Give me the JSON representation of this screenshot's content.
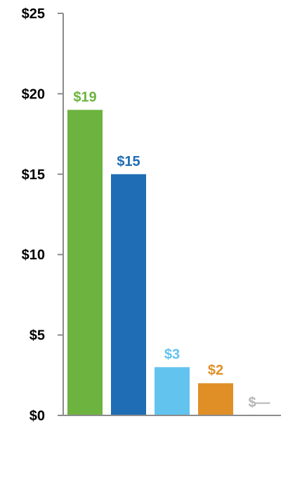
{
  "chart_data": {
    "type": "bar",
    "title": "",
    "xlabel": "",
    "ylabel": "",
    "ylim": [
      0,
      25
    ],
    "y_ticks": [
      0,
      5,
      10,
      15,
      20,
      25
    ],
    "y_tick_labels": [
      "$0",
      "$5",
      "$10",
      "$15",
      "$20",
      "$25"
    ],
    "values": [
      19,
      15,
      3,
      2,
      0
    ],
    "data_labels": [
      "$19",
      "$15",
      "$3",
      "$2",
      "$—"
    ],
    "colors": [
      "#6db33f",
      "#1f6db4",
      "#62c3ef",
      "#e08f27",
      "#b5b5b5"
    ],
    "grid": false,
    "legend": "none"
  }
}
